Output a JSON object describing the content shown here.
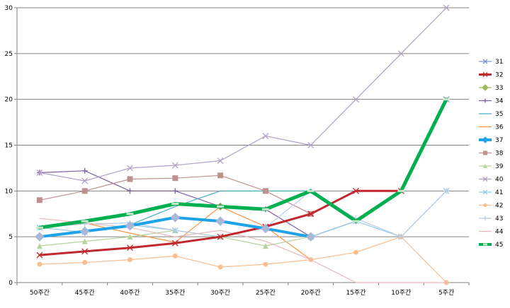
{
  "chart_data": {
    "type": "line",
    "title": "",
    "xlabel": "",
    "ylabel": "",
    "categories": [
      "50주간",
      "45주간",
      "40주간",
      "35주간",
      "30주간",
      "25주간",
      "20주간",
      "15주간",
      "10주간",
      "5주간"
    ],
    "ylim": [
      0,
      30
    ],
    "yticks": [
      0,
      5,
      10,
      15,
      20,
      25,
      30
    ],
    "grid": true,
    "legend": "right",
    "series": [
      {
        "name": "31",
        "color": "#7f96c8",
        "marker": "x",
        "width": 1.2,
        "values": [
          null,
          null,
          null,
          null,
          null,
          null,
          null,
          null,
          null,
          20
        ]
      },
      {
        "name": "32",
        "color": "#c0282d",
        "marker": "x",
        "width": 3,
        "values": [
          3,
          3.4,
          3.8,
          4.3,
          5,
          6.1,
          7.5,
          10,
          10,
          null
        ]
      },
      {
        "name": "33",
        "color": "#9bbb59",
        "marker": "diamond",
        "width": 1.2,
        "values": [
          null,
          null,
          null,
          null,
          8.3,
          null,
          null,
          null,
          null,
          null
        ]
      },
      {
        "name": "34",
        "color": "#7b5fa0",
        "marker": "plus",
        "width": 1.2,
        "values": [
          12,
          12.2,
          10,
          10,
          8.3,
          8,
          5,
          6.7,
          null,
          null
        ]
      },
      {
        "name": "35",
        "color": "#4bacc6",
        "marker": "none",
        "width": 1.2,
        "values": [
          5,
          5.5,
          6.3,
          8.3,
          10,
          10,
          10,
          null,
          null,
          null
        ]
      },
      {
        "name": "36",
        "color": "#f79646",
        "marker": "none",
        "width": 1.2,
        "values": [
          6,
          6.5,
          5.4,
          4.4,
          8.3,
          6.1,
          2.5,
          null,
          null,
          null
        ]
      },
      {
        "name": "37",
        "color": "#1ea3e8",
        "marker": "diamond",
        "width": 4,
        "values": [
          5,
          5.6,
          6.2,
          7.1,
          6.7,
          5.9,
          5,
          null,
          null,
          null
        ]
      },
      {
        "name": "38",
        "color": "#c0908e",
        "marker": "square",
        "width": 1.2,
        "values": [
          9,
          10,
          11.3,
          11.4,
          11.7,
          10,
          7.5,
          null,
          null,
          null
        ]
      },
      {
        "name": "39",
        "color": "#b7d39b",
        "marker": "triangle",
        "width": 1.2,
        "values": [
          4,
          4.5,
          5,
          5.7,
          5,
          4,
          5,
          null,
          null,
          null
        ]
      },
      {
        "name": "40",
        "color": "#b1a0c7",
        "marker": "x",
        "width": 1.2,
        "values": [
          12,
          11.1,
          12.5,
          12.8,
          13.3,
          16,
          15,
          20,
          25,
          30
        ]
      },
      {
        "name": "41",
        "color": "#8fcae6",
        "marker": "x",
        "width": 1.2,
        "values": [
          6,
          5.5,
          6.3,
          5.7,
          5,
          6,
          5,
          6.7,
          5,
          10
        ]
      },
      {
        "name": "42",
        "color": "#fbbe8f",
        "marker": "circle",
        "width": 1.2,
        "values": [
          2,
          2.2,
          2.5,
          2.9,
          1.7,
          2,
          2.5,
          3.3,
          5,
          0
        ]
      },
      {
        "name": "43",
        "color": "#b8cce4",
        "marker": "plus",
        "width": 1.2,
        "values": [
          6,
          6.4,
          6.5,
          5.7,
          5,
          6,
          10,
          7,
          5,
          10
        ]
      },
      {
        "name": "44",
        "color": "#e6b9b8",
        "marker": "none",
        "width": 1.2,
        "values": [
          7,
          6.5,
          6,
          5,
          5.7,
          4.5,
          2.5,
          0,
          0,
          0
        ]
      },
      {
        "name": "45",
        "color": "#00b050",
        "marker": "dash",
        "width": 5,
        "values": [
          6,
          6.7,
          7.5,
          8.6,
          8.3,
          8,
          10,
          6.7,
          10,
          20
        ]
      }
    ]
  }
}
